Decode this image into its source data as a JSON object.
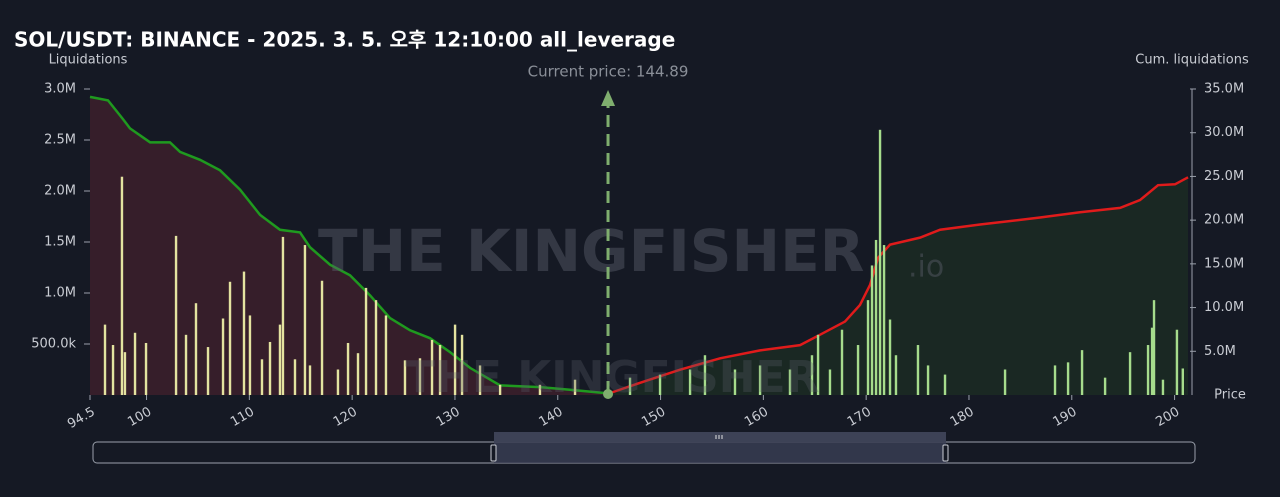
{
  "chart_data": {
    "type": "bar",
    "title": "SOL/USDT: BINANCE - 2025. 3. 5. 오후 12:10:00 all_leverage",
    "y_label": "Liquidations",
    "y2_label": "Cum. liquidations",
    "x_label": "Price",
    "watermark": {
      "text": "THE KINGFISHER",
      "suffix": ".io"
    },
    "annotation": {
      "text": "Current price: 144.89",
      "x": 144.89,
      "color": "#7fae6e"
    },
    "xlim": [
      94.5,
      201.5
    ],
    "xticks": [
      94.5,
      100,
      110,
      120,
      130,
      140,
      150,
      160,
      170,
      180,
      190,
      200
    ],
    "ylim": [
      0,
      3000000
    ],
    "yticks": [
      {
        "value": 500000,
        "label": "500.0k"
      },
      {
        "value": 1000000,
        "label": "1.0M"
      },
      {
        "value": 1500000,
        "label": "1.5M"
      },
      {
        "value": 2000000,
        "label": "2.0M"
      },
      {
        "value": 2500000,
        "label": "2.5M"
      },
      {
        "value": 3000000,
        "label": "3.0M"
      }
    ],
    "y2lim": [
      0,
      35000000
    ],
    "y2ticks": [
      {
        "value": 5000000,
        "label": "5.0M"
      },
      {
        "value": 10000000,
        "label": "10.0M"
      },
      {
        "value": 15000000,
        "label": "15.0M"
      },
      {
        "value": 20000000,
        "label": "20.0M"
      },
      {
        "value": 25000000,
        "label": "25.0M"
      },
      {
        "value": 30000000,
        "label": "30.0M"
      },
      {
        "value": 35000000,
        "label": "35.0M"
      }
    ],
    "series": [
      {
        "type": "line",
        "axis": "y2",
        "color": "#1f9a1f",
        "fill": "#3a1f2b",
        "x": [
          94.5,
          96.25,
          97.61,
          98.39,
          100.34,
          102.28,
          103.26,
          105.2,
          107.15,
          109.09,
          111.04,
          112.98,
          114.93,
          115.9,
          117.85,
          119.79,
          121.74,
          123.68,
          125.63,
          127.57,
          129.52,
          131.47,
          134.39,
          138.27,
          141.19,
          144.79
        ],
        "values": [
          34100000,
          33700000,
          31700000,
          30500000,
          28900000,
          28900000,
          27800000,
          26900000,
          25700000,
          23500000,
          20600000,
          18900000,
          18600000,
          16900000,
          14900000,
          13700000,
          11400000,
          8800000,
          7400000,
          6500000,
          4900000,
          3100000,
          1100000,
          900000,
          600000,
          200000
        ]
      },
      {
        "type": "line",
        "axis": "y2",
        "color": "#e01b1b",
        "fill": "#1b2a23",
        "x": [
          145.28,
          148.01,
          151.9,
          155.79,
          159.68,
          163.57,
          165.52,
          167.94,
          169.4,
          170.38,
          171.16,
          172.32,
          175.24,
          177.19,
          181.08,
          186.91,
          190.8,
          194.7,
          196.64,
          198.39,
          200.04,
          201.31
        ],
        "values": [
          300000,
          1400000,
          2900000,
          4200000,
          5100000,
          5700000,
          6900000,
          8400000,
          10300000,
          12600000,
          15700000,
          17200000,
          18000000,
          18900000,
          19500000,
          20300000,
          20900000,
          21400000,
          22300000,
          24000000,
          24100000,
          24900000
        ]
      },
      {
        "type": "bar",
        "color": "#e4e3a0",
        "x": [
          95.96,
          96.74,
          97.61,
          97.9,
          98.88,
          99.95,
          102.87,
          103.84,
          104.81,
          105.98,
          107.44,
          108.12,
          109.48,
          110.06,
          111.23,
          112.01,
          112.98,
          113.27,
          114.44,
          115.41,
          115.9,
          117.07,
          118.62,
          119.6,
          120.57,
          121.35,
          122.32,
          123.29,
          125.14,
          126.6,
          127.77,
          128.55,
          130.01,
          130.69,
          132.44,
          134.39,
          138.27,
          141.68
        ],
        "values": [
          690000,
          490000,
          2140000,
          420000,
          610000,
          510000,
          1560000,
          590000,
          900000,
          470000,
          750000,
          1110000,
          1210000,
          780000,
          350000,
          520000,
          690000,
          1550000,
          350000,
          1470000,
          290000,
          1120000,
          250000,
          510000,
          410000,
          1050000,
          930000,
          780000,
          340000,
          360000,
          540000,
          490000,
          690000,
          590000,
          290000,
          100000,
          100000,
          150000
        ]
      },
      {
        "type": "bar",
        "color": "#a6dc8c",
        "x": [
          147.03,
          149.95,
          152.87,
          154.32,
          157.24,
          159.68,
          162.59,
          164.73,
          165.32,
          166.48,
          167.65,
          169.21,
          170.18,
          170.57,
          170.96,
          171.35,
          171.74,
          172.32,
          172.9,
          175.04,
          176.02,
          177.67,
          183.51,
          188.37,
          189.64,
          191.0,
          193.24,
          195.67,
          197.42,
          197.81,
          198.0,
          198.87,
          200.23,
          200.8
        ],
        "values": [
          170000,
          200000,
          250000,
          390000,
          250000,
          290000,
          250000,
          390000,
          590000,
          250000,
          640000,
          490000,
          930000,
          1270000,
          1520000,
          2600000,
          1470000,
          740000,
          390000,
          490000,
          290000,
          200000,
          250000,
          290000,
          320000,
          440000,
          170000,
          420000,
          490000,
          660000,
          930000,
          150000,
          640000,
          260000
        ]
      }
    ]
  }
}
